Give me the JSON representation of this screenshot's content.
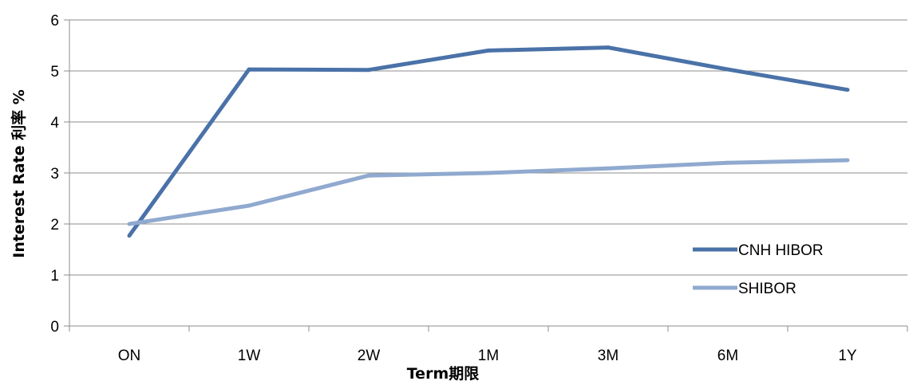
{
  "chart_data": {
    "type": "line",
    "title": "",
    "xlabel": "Term期限",
    "ylabel": "Interest Rate 利率 %",
    "categories": [
      "ON",
      "1W",
      "2W",
      "1M",
      "3M",
      "6M",
      "1Y"
    ],
    "ylim": [
      0,
      6
    ],
    "yticks": [
      "0",
      "1",
      "2",
      "3",
      "4",
      "5",
      "6"
    ],
    "grid": true,
    "legend_position": "bottom-right",
    "series": [
      {
        "name": "CNH HIBOR",
        "color": "#4a72a8",
        "values": [
          1.77,
          5.03,
          5.02,
          5.4,
          5.46,
          5.03,
          4.63
        ]
      },
      {
        "name": "SHIBOR",
        "color": "#90a9cf",
        "values": [
          2.0,
          2.36,
          2.95,
          3.0,
          3.09,
          3.2,
          3.25
        ]
      }
    ]
  }
}
